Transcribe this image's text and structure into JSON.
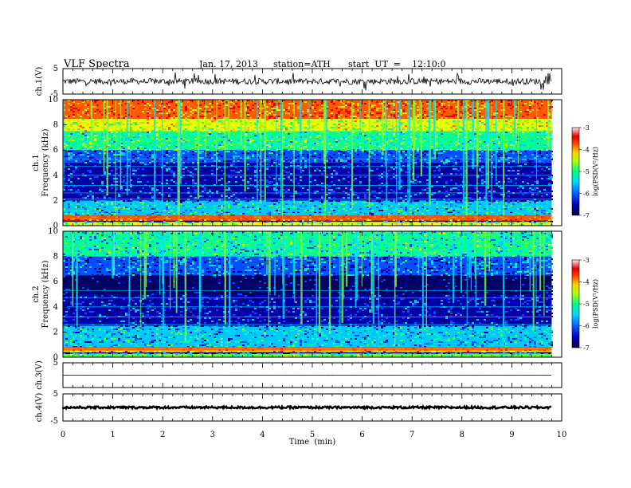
{
  "header": {
    "title": "VLF Spectra",
    "date": "Jan. 17, 2013",
    "station": "station=ATH",
    "start": "start  UT  =    12:10:0"
  },
  "chart_data": [
    {
      "type": "line",
      "panel": "ch1-waveform",
      "ylabel": "ch.1(V)",
      "ylim": [
        -5,
        5
      ],
      "yticks": [
        "5",
        "-5"
      ],
      "baseline": 0,
      "amplitude_typical": 1.2
    },
    {
      "type": "heatmap",
      "panel": "ch1-spectrogram",
      "ylabel": "ch.1\nFrequency (kHz)",
      "ylabel_lines": [
        "ch.1",
        "Frequency  (kHz)"
      ],
      "ylim": [
        0,
        10
      ],
      "yticks": [
        "0",
        "2",
        "4",
        "6",
        "8",
        "10"
      ],
      "colorbar": {
        "label": "log(PSD(V²/Hz)",
        "range": [
          -7,
          -3
        ],
        "ticks": [
          "-3",
          "-4",
          "-5",
          "-6",
          "-7"
        ]
      },
      "bands_khz": [
        {
          "from": 0,
          "to": 0.3,
          "level": -4.6
        },
        {
          "from": 0.4,
          "to": 0.8,
          "level": -3.8
        },
        {
          "from": 0.8,
          "to": 2.0,
          "level": -5.5
        },
        {
          "from": 2.0,
          "to": 5.0,
          "level": -6.3
        },
        {
          "from": 5.0,
          "to": 6.0,
          "level": -6.0
        },
        {
          "from": 6.0,
          "to": 7.5,
          "level": -5.1
        },
        {
          "from": 7.5,
          "to": 8.5,
          "level": -4.5
        },
        {
          "from": 8.5,
          "to": 10.0,
          "level": -3.6
        }
      ]
    },
    {
      "type": "heatmap",
      "panel": "ch2-spectrogram",
      "ylabel_lines": [
        "ch.2",
        "Frequency  (kHz)"
      ],
      "ylim": [
        0,
        10
      ],
      "yticks": [
        "0",
        "2",
        "4",
        "6",
        "8",
        "10"
      ],
      "colorbar": {
        "label": "log(PSD(V²/Hz)",
        "range": [
          -7,
          -3
        ],
        "ticks": [
          "-3",
          "-4",
          "-5",
          "-6",
          "-7"
        ]
      },
      "bands_khz": [
        {
          "from": 0,
          "to": 0.3,
          "level": -5.0
        },
        {
          "from": 0.4,
          "to": 0.8,
          "level": -4.0
        },
        {
          "from": 0.8,
          "to": 2.5,
          "level": -5.6
        },
        {
          "from": 2.5,
          "to": 5.0,
          "level": -6.4
        },
        {
          "from": 5.0,
          "to": 6.5,
          "level": -6.8
        },
        {
          "from": 6.5,
          "to": 8.0,
          "level": -6.0
        },
        {
          "from": 8.0,
          "to": 10.0,
          "level": -5.3
        }
      ]
    },
    {
      "type": "line",
      "panel": "ch3-waveform",
      "ylabel": "ch.3(V)",
      "ylim": [
        -5,
        5
      ],
      "yticks": [
        "5"
      ],
      "baseline": 0,
      "amplitude_typical": 0.05
    },
    {
      "type": "line",
      "panel": "ch4-waveform",
      "ylabel": "ch.4(V)",
      "ylim": [
        -5,
        5
      ],
      "yticks": [
        "5",
        "-5"
      ],
      "baseline": 0,
      "amplitude_typical": 0.4
    }
  ],
  "xaxis": {
    "label": "Time  (min)",
    "range": [
      0,
      10
    ],
    "ticks": [
      "0",
      "1",
      "2",
      "3",
      "4",
      "5",
      "6",
      "7",
      "8",
      "9",
      "10"
    ],
    "data_end": 9.8
  },
  "colors": {
    "colormap": [
      "#000060",
      "#0000b0",
      "#0050ff",
      "#00c8ff",
      "#00ff96",
      "#64ff32",
      "#e6ff00",
      "#ffc800",
      "#ff5a00",
      "#e60000",
      "#ffd2d2"
    ]
  }
}
